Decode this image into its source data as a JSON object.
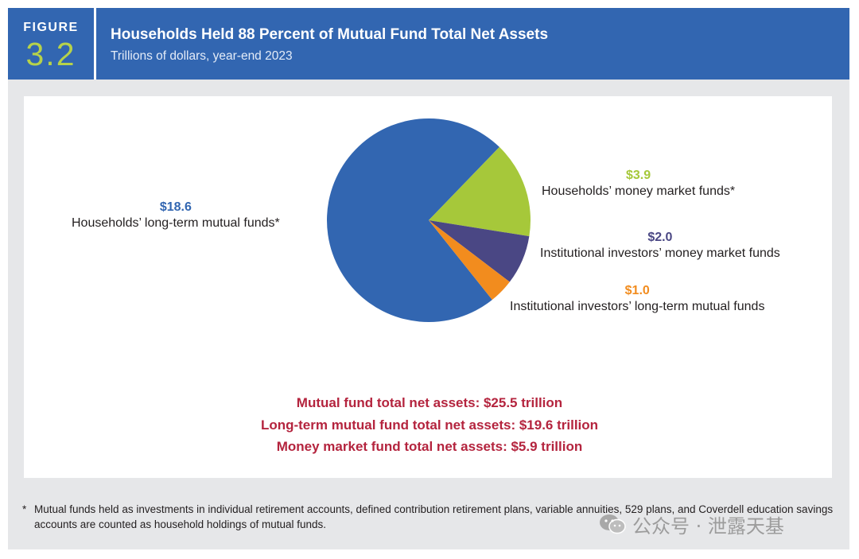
{
  "header": {
    "figure_word": "FIGURE",
    "figure_number": "3.2",
    "title": "Households Held 88 Percent of Mutual Fund Total Net Assets",
    "subtitle": "Trillions of dollars, year-end 2023"
  },
  "chart_data": {
    "type": "pie",
    "title": "Households Held 88 Percent of Mutual Fund Total Net Assets",
    "subtitle": "Trillions of dollars, year-end 2023",
    "slices": [
      {
        "label": "Households’ long-term mutual funds*",
        "value": 18.6,
        "value_label": "$18.6",
        "color": "#3266b1"
      },
      {
        "label": "Households’ money market funds*",
        "value": 3.9,
        "value_label": "$3.9",
        "color": "#a6c83a"
      },
      {
        "label": "Institutional investors’ money market funds",
        "value": 2.0,
        "value_label": "$2.0",
        "color": "#4a4784"
      },
      {
        "label": "Institutional investors’ long-term mutual funds",
        "value": 1.0,
        "value_label": "$1.0",
        "color": "#f28c1e"
      }
    ],
    "totals": [
      "Mutual fund total net assets:  $25.5 trillion",
      "Long-term mutual fund total net assets:  $19.6 trillion",
      "Money market fund total net assets:  $5.9 trillion"
    ]
  },
  "footnote": {
    "marker": "*",
    "text": "Mutual funds held as investments in individual retirement accounts, defined contribution retirement plans, variable annuities, 529 plans, and Coverdell education savings accounts are counted as household holdings of mutual funds."
  },
  "watermark": {
    "text": "公众号 · 泄露天基",
    "icon": "wechat-icon"
  },
  "colors": {
    "header_bg": "#3266b1",
    "figure_number": "#b6d24a",
    "totals_text": "#b4243e",
    "frame_bg": "#e6e7e9"
  }
}
